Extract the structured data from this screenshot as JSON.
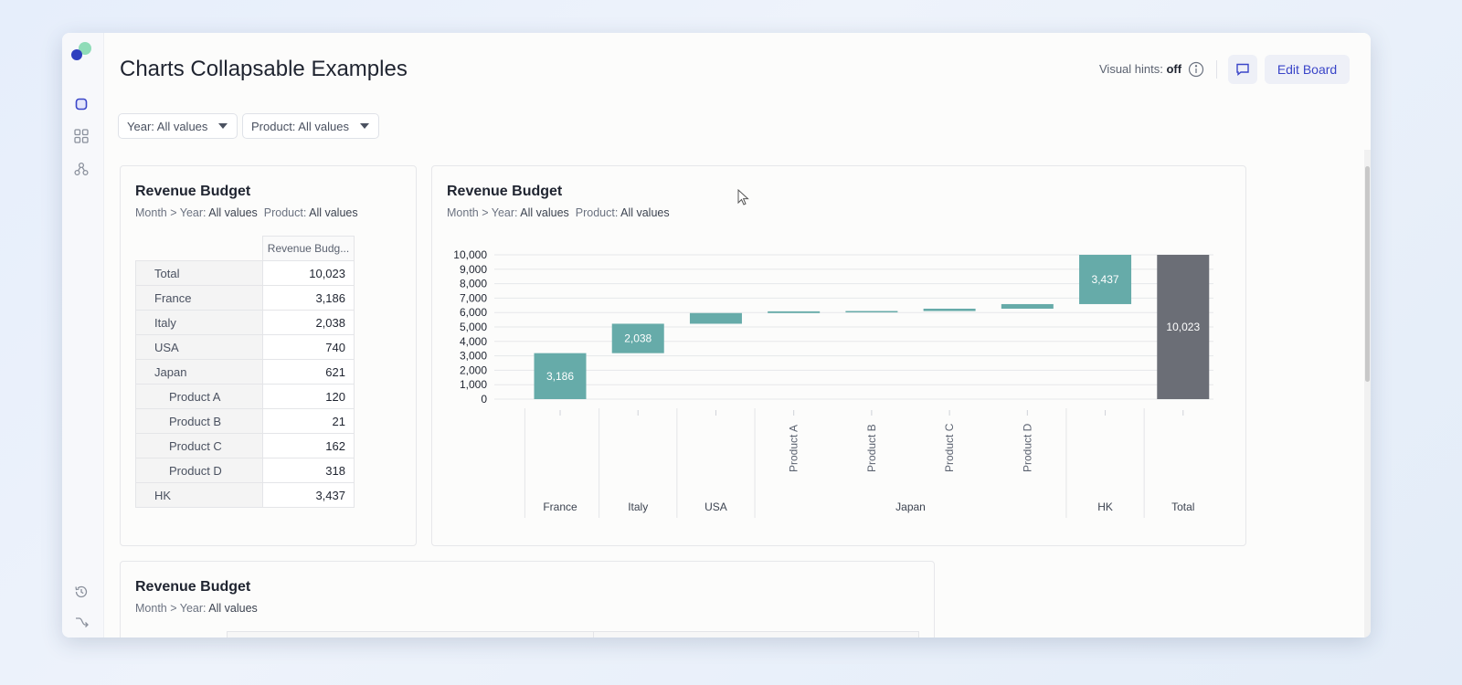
{
  "app": {
    "title": "Charts Collapsable Examples",
    "visual_hints_label": "Visual hints:",
    "visual_hints_value": "off",
    "edit_board_label": "Edit Board",
    "sidebar_icons": [
      "board-icon",
      "grid-icon",
      "network-icon",
      "history-icon",
      "branch-icon"
    ]
  },
  "filters": [
    {
      "label": "Year: All values"
    },
    {
      "label": "Product: All values"
    }
  ],
  "table_card": {
    "title": "Revenue Budget",
    "sub_prefix": "Month > Year:",
    "sub_year": "All values",
    "sub_product_label": "Product:",
    "sub_product": "All values",
    "column_header": "Revenue Budg...",
    "rows": [
      {
        "label": "Total",
        "value": "10,023"
      },
      {
        "label": "France",
        "value": "3,186"
      },
      {
        "label": "Italy",
        "value": "2,038"
      },
      {
        "label": "USA",
        "value": "740"
      },
      {
        "label": "Japan",
        "value": "621"
      },
      {
        "label": "Product A",
        "value": "120"
      },
      {
        "label": "Product B",
        "value": "21"
      },
      {
        "label": "Product C",
        "value": "162"
      },
      {
        "label": "Product D",
        "value": "318"
      },
      {
        "label": "HK",
        "value": "3,437"
      }
    ]
  },
  "chart_card": {
    "title": "Revenue Budget",
    "sub_prefix": "Month > Year:",
    "sub_year": "All values",
    "sub_product_label": "Product:",
    "sub_product": "All values"
  },
  "bottom_card": {
    "title": "Revenue Budget",
    "sub_prefix": "Month > Year:",
    "sub_year": "All values"
  },
  "colors": {
    "increase": "#66aba9",
    "total": "#6b6e76",
    "accent": "#3a45c8"
  },
  "chart_data": {
    "type": "bar",
    "subtype": "waterfall",
    "title": "Revenue Budget",
    "ylim": [
      0,
      10000
    ],
    "yticks": [
      "0",
      "1,000",
      "2,000",
      "3,000",
      "4,000",
      "5,000",
      "6,000",
      "7,000",
      "8,000",
      "9,000",
      "10,000"
    ],
    "grid": true,
    "bars": [
      {
        "category": "France",
        "group": "France",
        "value": 3186,
        "label": "3,186",
        "kind": "increase"
      },
      {
        "category": "Italy",
        "group": "Italy",
        "value": 2038,
        "label": "2,038",
        "kind": "increase"
      },
      {
        "category": "USA",
        "group": "USA",
        "value": 740,
        "label": "",
        "kind": "increase"
      },
      {
        "category": "Product A",
        "group": "Japan",
        "value": 120,
        "label": "",
        "kind": "increase"
      },
      {
        "category": "Product B",
        "group": "Japan",
        "value": 21,
        "label": "",
        "kind": "increase"
      },
      {
        "category": "Product C",
        "group": "Japan",
        "value": 162,
        "label": "",
        "kind": "increase"
      },
      {
        "category": "Product D",
        "group": "Japan",
        "value": 318,
        "label": "",
        "kind": "increase"
      },
      {
        "category": "HK",
        "group": "HK",
        "value": 3437,
        "label": "3,437",
        "kind": "increase"
      },
      {
        "category": "Total",
        "group": "Total",
        "value": 10023,
        "label": "10,023",
        "kind": "total"
      }
    ],
    "groups": [
      "France",
      "Italy",
      "USA",
      "Japan",
      "HK",
      "Total"
    ],
    "rotated_labels": [
      "Product A",
      "Product B",
      "Product C",
      "Product D"
    ]
  }
}
